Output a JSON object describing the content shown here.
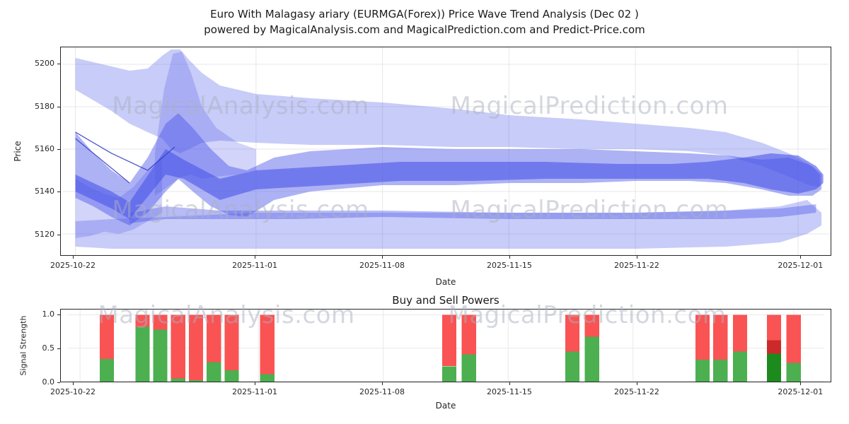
{
  "title": {
    "line1": "Euro With Malagasy ariary (EURMGA(Forex)) Price Wave Trend Analysis (Dec 02 )",
    "line2": "powered by MagicalAnalysis.com and MagicalPrediction.com and Predict-Price.com"
  },
  "watermarks": {
    "left": "MagicalAnalysis.com",
    "right": "MagicalPrediction.com"
  },
  "colors": {
    "spine": "#262626",
    "grid": "#e7e7e7",
    "band_base": "#4a55e8",
    "buy": "#4caf50",
    "sell": "#fa5353"
  },
  "chart_data": [
    {
      "type": "band",
      "name": "price-wave-trend",
      "xlabel": "Date",
      "ylabel": "Price",
      "xlim": [
        -0.7,
        41.7
      ],
      "ylim": [
        5110,
        5208
      ],
      "band_color": "#4a55e8",
      "yticks": [
        {
          "v": 5120,
          "label": "5120"
        },
        {
          "v": 5140,
          "label": "5140"
        },
        {
          "v": 5160,
          "label": "5160"
        },
        {
          "v": 5180,
          "label": "5180"
        },
        {
          "v": 5200,
          "label": "5200"
        }
      ],
      "xticks": [
        {
          "day": 0,
          "label": "2025-10-22"
        },
        {
          "day": 10,
          "label": "2025-11-01"
        },
        {
          "day": 17,
          "label": "2025-11-08"
        },
        {
          "day": 24,
          "label": "2025-11-15"
        },
        {
          "day": 31,
          "label": "2025-11-22"
        },
        {
          "day": 40,
          "label": "2025-12-01"
        }
      ],
      "bands": [
        {
          "name": "outer-top-band",
          "opacity": 0.3,
          "x": [
            0,
            1,
            2,
            3,
            4,
            4.8,
            5.3,
            5.8,
            6.3,
            7,
            8,
            10,
            13,
            17,
            21,
            24,
            28,
            31,
            34,
            36,
            38,
            39.5,
            40.6,
            41.2
          ],
          "upper": [
            5203,
            5201,
            5199,
            5197,
            5198,
            5204,
            5207,
            5207,
            5202,
            5196,
            5190,
            5186,
            5184,
            5182,
            5179,
            5176,
            5174,
            5172,
            5170,
            5168,
            5163,
            5158,
            5153,
            5148
          ],
          "lower": [
            5188,
            5183,
            5178,
            5172,
            5168,
            5165,
            5160,
            5158,
            5160,
            5163,
            5164,
            5163,
            5162,
            5162,
            5161,
            5161,
            5160,
            5160,
            5159,
            5157,
            5152,
            5147,
            5143,
            5142
          ]
        },
        {
          "name": "lower-flat-band",
          "opacity": 0.3,
          "x": [
            0,
            2,
            5,
            10,
            17,
            24,
            31,
            36,
            39,
            40.5,
            41.3
          ],
          "upper": [
            5126,
            5127,
            5128,
            5130,
            5130,
            5130,
            5130,
            5131,
            5133,
            5136,
            5130
          ],
          "lower": [
            5114,
            5113,
            5113,
            5113,
            5113,
            5113,
            5113,
            5114,
            5116,
            5120,
            5124
          ]
        },
        {
          "name": "spike-band",
          "opacity": 0.25,
          "x": [
            4.4,
            4.9,
            5.4,
            5.9,
            6.4,
            7.0,
            7.8,
            9,
            10
          ],
          "upper": [
            5158,
            5188,
            5205,
            5206,
            5196,
            5180,
            5170,
            5163,
            5160
          ],
          "lower": [
            5138,
            5141,
            5144,
            5147,
            5148,
            5146,
            5147,
            5148,
            5150
          ]
        },
        {
          "name": "left-cluster-band",
          "opacity": 0.25,
          "x": [
            0,
            0.8,
            1.6,
            2.4,
            3.2,
            4.0,
            4.8
          ],
          "upper": [
            5146,
            5142,
            5139,
            5137,
            5142,
            5150,
            5157
          ],
          "lower": [
            5118,
            5119,
            5121,
            5120,
            5122,
            5126,
            5130
          ]
        },
        {
          "name": "mid-main-band",
          "opacity": 0.45,
          "x": [
            0,
            1,
            2,
            3,
            4,
            5,
            5.7,
            6.5,
            7.5,
            8.5,
            9.5,
            11,
            13,
            17,
            21,
            24,
            28,
            31,
            34,
            36,
            38,
            39.5,
            40.8,
            41.3
          ],
          "upper": [
            5168,
            5158,
            5150,
            5144,
            5156,
            5172,
            5177,
            5170,
            5160,
            5152,
            5150,
            5156,
            5159,
            5161,
            5160,
            5160,
            5160,
            5159,
            5158,
            5157,
            5155,
            5156,
            5152,
            5148
          ],
          "lower": [
            5137,
            5133,
            5128,
            5124,
            5130,
            5140,
            5146,
            5140,
            5133,
            5129,
            5128,
            5136,
            5140,
            5143,
            5143,
            5144,
            5144,
            5145,
            5145,
            5144,
            5141,
            5138,
            5138,
            5141
          ]
        },
        {
          "name": "mid-thin-band",
          "opacity": 0.4,
          "x": [
            3,
            5,
            8,
            12,
            17,
            24,
            31,
            36,
            39,
            41
          ],
          "upper": [
            5130,
            5133,
            5131,
            5131,
            5131,
            5130,
            5130,
            5131,
            5132,
            5134
          ],
          "lower": [
            5125,
            5127,
            5127,
            5127,
            5128,
            5127,
            5127,
            5127,
            5128,
            5130
          ]
        },
        {
          "name": "inner-dark-band",
          "opacity": 0.6,
          "x": [
            0,
            2,
            3,
            5,
            6,
            8,
            10,
            14,
            18,
            22,
            26,
            30,
            33,
            35,
            37,
            38.5,
            40,
            41,
            41.4
          ],
          "upper": [
            5148,
            5140,
            5135,
            5160,
            5155,
            5146,
            5150,
            5152,
            5154,
            5154,
            5154,
            5153,
            5153,
            5154,
            5156,
            5158,
            5157,
            5152,
            5148
          ],
          "lower": [
            5140,
            5132,
            5127,
            5148,
            5146,
            5136,
            5141,
            5143,
            5145,
            5145,
            5146,
            5146,
            5146,
            5146,
            5144,
            5141,
            5139,
            5141,
            5144
          ]
        }
      ],
      "lines": [
        {
          "name": "trend-line-1",
          "x": [
            0,
            2,
            4,
            5.5
          ],
          "y": [
            5168,
            5158,
            5150,
            5161
          ]
        },
        {
          "name": "trend-line-2",
          "x": [
            0,
            3
          ],
          "y": [
            5165,
            5144
          ]
        }
      ]
    },
    {
      "type": "bar",
      "name": "buy-sell-powers",
      "title": "Buy and Sell Powers",
      "xlabel": "Date",
      "ylabel": "Signal Strength",
      "xlim": [
        -0.7,
        41.7
      ],
      "ylim": [
        0,
        1.08
      ],
      "bar_width_days": 0.8,
      "colors": {
        "buy": "#4caf50",
        "sell": "#fa5353"
      },
      "yticks": [
        {
          "v": 0,
          "label": "0.0"
        },
        {
          "v": 0.5,
          "label": "0.5"
        },
        {
          "v": 1,
          "label": "1.0"
        }
      ],
      "xticks": [
        {
          "day": 0,
          "label": "2025-10-22"
        },
        {
          "day": 10,
          "label": "2025-11-01"
        },
        {
          "day": 17,
          "label": "2025-11-08"
        },
        {
          "day": 24,
          "label": "2025-11-15"
        },
        {
          "day": 31,
          "label": "2025-11-22"
        },
        {
          "day": 40,
          "label": "2025-12-01"
        }
      ],
      "bars": [
        {
          "day": 1.5,
          "buy": 0.34,
          "sell": 0.66
        },
        {
          "day": 3.5,
          "buy": 0.82,
          "sell": 0.18
        },
        {
          "day": 4.5,
          "buy": 0.78,
          "sell": 0.22
        },
        {
          "day": 5.5,
          "buy": 0.05,
          "sell": 0.95
        },
        {
          "day": 6.5,
          "buy": 0.02,
          "sell": 0.98
        },
        {
          "day": 7.5,
          "buy": 0.29,
          "sell": 0.71
        },
        {
          "day": 8.5,
          "buy": 0.17,
          "sell": 0.83
        },
        {
          "day": 10.5,
          "buy": 0.11,
          "sell": 0.89
        },
        {
          "day": 20.7,
          "buy": 0.23,
          "sell": 0.77
        },
        {
          "day": 21.8,
          "buy": 0.41,
          "sell": 0.59
        },
        {
          "day": 27.6,
          "buy": 0.45,
          "sell": 0.55
        },
        {
          "day": 28.7,
          "buy": 0.67,
          "sell": 0.33
        },
        {
          "day": 34.9,
          "buy": 0.33,
          "sell": 0.67
        },
        {
          "day": 35.9,
          "buy": 0.33,
          "sell": 0.67
        },
        {
          "day": 37.0,
          "buy": 0.45,
          "sell": 0.55
        },
        {
          "day": 38.9,
          "segments": [
            {
              "from": 0,
              "to": 0.42,
              "color": "#1c8a1c"
            },
            {
              "from": 0.42,
              "to": 0.62,
              "color": "#cc2a2a"
            },
            {
              "from": 0.62,
              "to": 1.0,
              "color": "#fa5353"
            }
          ]
        },
        {
          "day": 40.0,
          "buy": 0.28,
          "sell": 0.72
        }
      ]
    }
  ]
}
